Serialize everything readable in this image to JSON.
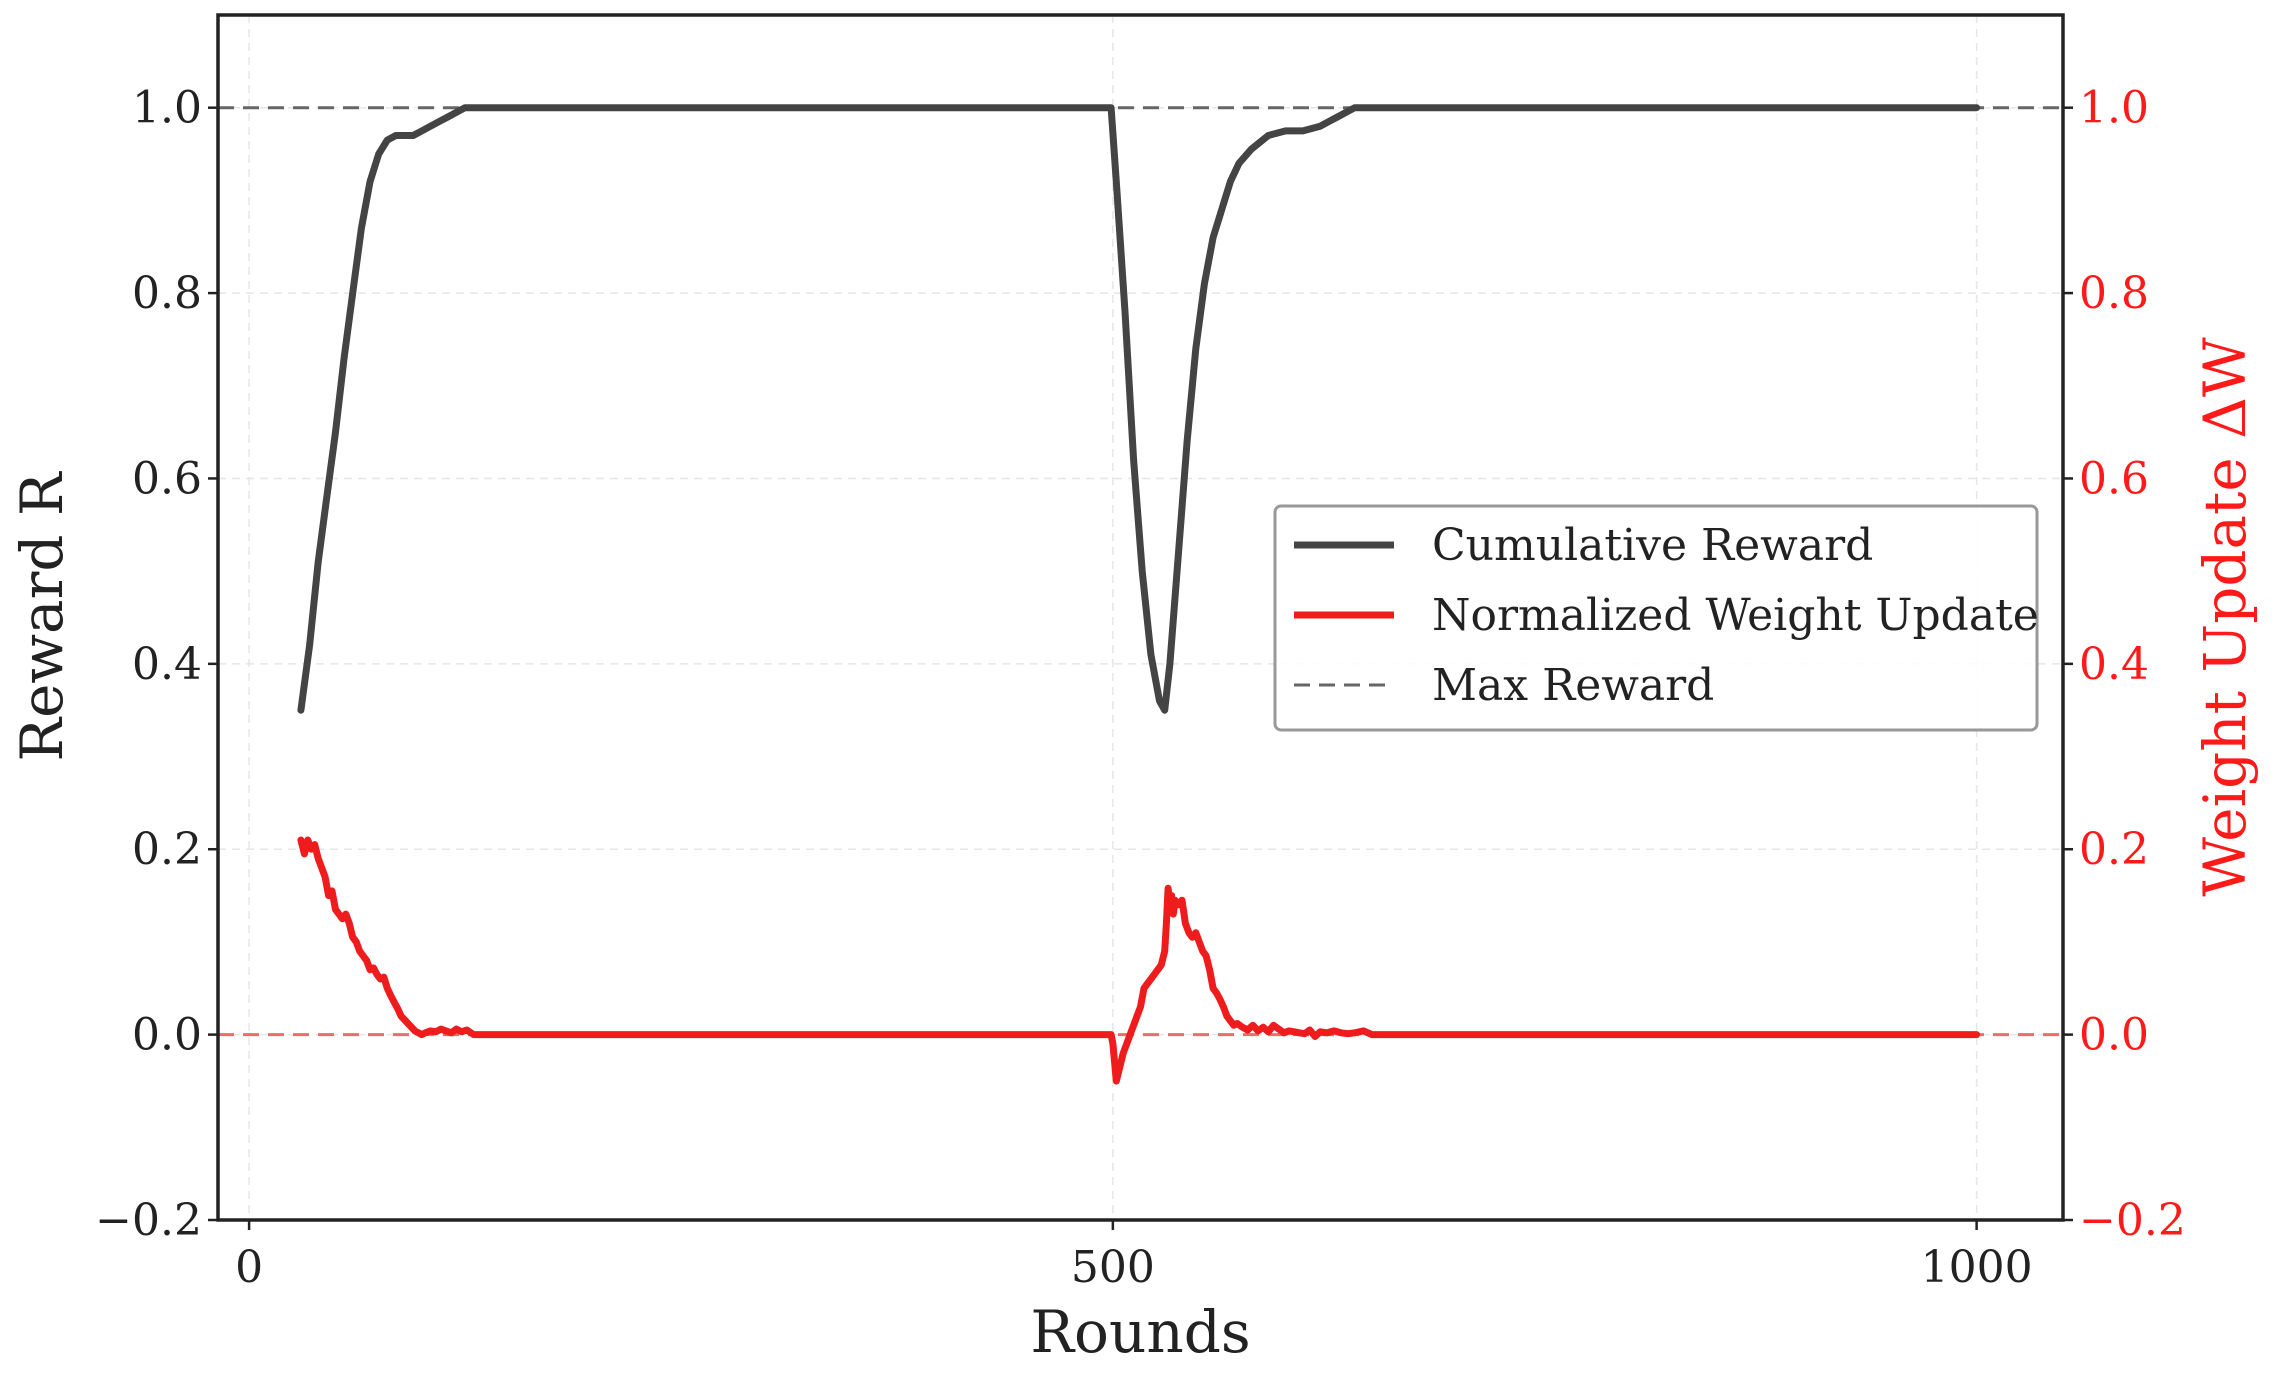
{
  "chart_data": {
    "type": "line",
    "xlabel": "Rounds",
    "ylabel": "Reward R",
    "y2label": "Weight Update ΔW",
    "xlim": [
      -18,
      1050
    ],
    "ylim": [
      -0.2,
      1.1
    ],
    "y2lim": [
      -0.2,
      1.1
    ],
    "x_ticks": [
      0,
      500,
      1000
    ],
    "y_ticks": [
      -0.2,
      0.0,
      0.2,
      0.4,
      0.6,
      0.8,
      1.0
    ],
    "y_tick_labels": [
      "−0.2",
      "0.0",
      "0.2",
      "0.4",
      "0.6",
      "0.8",
      "1.0"
    ],
    "y2_ticks": [
      -0.2,
      0.0,
      0.2,
      0.4,
      0.6,
      0.8,
      1.0
    ],
    "y2_tick_labels": [
      "−0.2",
      "0.0",
      "0.2",
      "0.4",
      "0.6",
      "0.8",
      "1.0"
    ],
    "grid": true,
    "legend_position": "center-right",
    "colors": {
      "reward": "#444444",
      "weight": "#ee1c1c",
      "max": "#666666",
      "zero": "#ee6b6b",
      "right_axis": "#ff1a1a"
    },
    "reference_lines": [
      {
        "name": "Max Reward",
        "axis": "left",
        "y": 1.0,
        "style": "dashed"
      },
      {
        "name": "",
        "axis": "right",
        "y": 0.0,
        "style": "dashed"
      }
    ],
    "series": [
      {
        "name": "Cumulative Reward",
        "axis": "left",
        "x": [
          30,
          35,
          40,
          45,
          50,
          55,
          60,
          65,
          70,
          75,
          80,
          85,
          90,
          95,
          100,
          105,
          110,
          115,
          120,
          125,
          130,
          135,
          140,
          145,
          150,
          200,
          300,
          400,
          499,
          502,
          507,
          512,
          517,
          522,
          527,
          530,
          533,
          538,
          543,
          548,
          553,
          558,
          563,
          568,
          573,
          580,
          590,
          600,
          610,
          620,
          625,
          630,
          635,
          640,
          645,
          650,
          700,
          800,
          900,
          1000
        ],
        "values": [
          0.35,
          0.42,
          0.51,
          0.58,
          0.65,
          0.73,
          0.8,
          0.87,
          0.92,
          0.95,
          0.965,
          0.97,
          0.97,
          0.97,
          0.975,
          0.98,
          0.985,
          0.99,
          0.995,
          1.0,
          1.0,
          1.0,
          1.0,
          1.0,
          1.0,
          1.0,
          1.0,
          1.0,
          1.0,
          0.92,
          0.78,
          0.62,
          0.5,
          0.41,
          0.36,
          0.35,
          0.4,
          0.52,
          0.64,
          0.74,
          0.81,
          0.86,
          0.89,
          0.92,
          0.94,
          0.955,
          0.97,
          0.975,
          0.975,
          0.98,
          0.985,
          0.99,
          0.995,
          1.0,
          1.0,
          1.0,
          1.0,
          1.0,
          1.0,
          1.0
        ]
      },
      {
        "name": "Normalized Weight Update",
        "axis": "right",
        "x": [
          30,
          32,
          34,
          36,
          38,
          40,
          42,
          44,
          46,
          48,
          50,
          52,
          54,
          56,
          58,
          60,
          62,
          64,
          66,
          68,
          70,
          72,
          74,
          76,
          78,
          80,
          82,
          84,
          86,
          88,
          90,
          92,
          94,
          96,
          98,
          100,
          102,
          105,
          108,
          111,
          114,
          117,
          120,
          123,
          126,
          130,
          140,
          150,
          200,
          300,
          400,
          499,
          500,
          501,
          502,
          504,
          506,
          508,
          510,
          512,
          514,
          516,
          518,
          520,
          522,
          524,
          526,
          528,
          530,
          531,
          532,
          533,
          534,
          535,
          536,
          538,
          540,
          542,
          544,
          546,
          548,
          550,
          552,
          554,
          556,
          558,
          560,
          562,
          564,
          566,
          568,
          570,
          572,
          575,
          578,
          581,
          584,
          587,
          590,
          593,
          596,
          599,
          602,
          605,
          608,
          611,
          614,
          617,
          620,
          624,
          628,
          632,
          636,
          640,
          645,
          650,
          700,
          800,
          900,
          1000
        ],
        "values": [
          0.21,
          0.195,
          0.21,
          0.2,
          0.205,
          0.19,
          0.18,
          0.17,
          0.15,
          0.155,
          0.135,
          0.13,
          0.125,
          0.13,
          0.12,
          0.105,
          0.1,
          0.09,
          0.085,
          0.08,
          0.07,
          0.072,
          0.065,
          0.06,
          0.062,
          0.05,
          0.042,
          0.035,
          0.028,
          0.02,
          0.016,
          0.012,
          0.008,
          0.004,
          0.002,
          0.0,
          0.002,
          0.004,
          0.003,
          0.006,
          0.004,
          0.002,
          0.006,
          0.003,
          0.005,
          0.0,
          0.0,
          0.0,
          0.0,
          0.0,
          0.0,
          0.0,
          -0.01,
          -0.03,
          -0.05,
          -0.035,
          -0.02,
          -0.01,
          0.0,
          0.01,
          0.02,
          0.03,
          0.05,
          0.055,
          0.06,
          0.065,
          0.07,
          0.075,
          0.09,
          0.12,
          0.158,
          0.14,
          0.15,
          0.13,
          0.145,
          0.14,
          0.145,
          0.12,
          0.11,
          0.105,
          0.11,
          0.1,
          0.09,
          0.085,
          0.07,
          0.05,
          0.045,
          0.038,
          0.03,
          0.02,
          0.015,
          0.01,
          0.012,
          0.008,
          0.005,
          0.01,
          0.004,
          0.008,
          0.003,
          0.01,
          0.006,
          0.002,
          0.004,
          0.003,
          0.002,
          0.001,
          0.005,
          -0.002,
          0.003,
          0.002,
          0.004,
          0.002,
          0.001,
          0.002,
          0.004,
          0.0,
          0.0,
          0.0,
          0.0,
          0.0
        ]
      }
    ],
    "legend": [
      {
        "label": "Cumulative Reward",
        "style": "solid",
        "color": "#444444"
      },
      {
        "label": "Normalized Weight Update",
        "style": "solid",
        "color": "#ee1c1c"
      },
      {
        "label": "Max Reward",
        "style": "dashed",
        "color": "#666666"
      }
    ]
  }
}
